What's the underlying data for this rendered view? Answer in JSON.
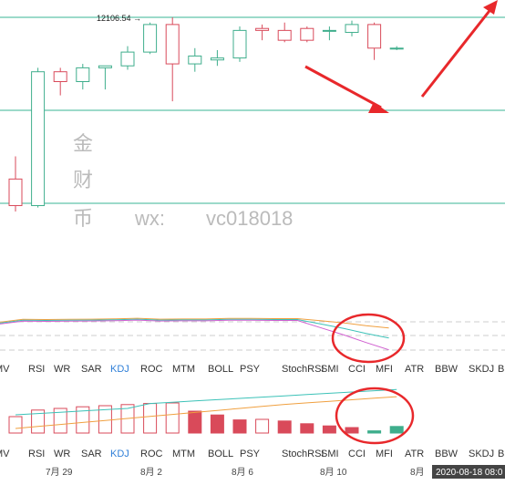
{
  "chart_data": {
    "type": "candlestick",
    "price_annotation": "12106.54 →",
    "candles": [
      {
        "o": 11285,
        "h": 11400,
        "l": 11120,
        "c": 11150
      },
      {
        "o": 11150,
        "h": 11850,
        "l": 11140,
        "c": 11830
      },
      {
        "o": 11830,
        "h": 11850,
        "l": 11710,
        "c": 11780
      },
      {
        "o": 11780,
        "h": 11870,
        "l": 11740,
        "c": 11850
      },
      {
        "o": 11850,
        "h": 11860,
        "l": 11740,
        "c": 11860
      },
      {
        "o": 11860,
        "h": 11960,
        "l": 11840,
        "c": 11930
      },
      {
        "o": 11930,
        "h": 12080,
        "l": 11920,
        "c": 12070
      },
      {
        "o": 12070,
        "h": 12106.54,
        "l": 11680,
        "c": 11870
      },
      {
        "o": 11870,
        "h": 11950,
        "l": 11830,
        "c": 11910
      },
      {
        "o": 11890,
        "h": 11940,
        "l": 11860,
        "c": 11900
      },
      {
        "o": 11900,
        "h": 12060,
        "l": 11880,
        "c": 12040
      },
      {
        "o": 12050,
        "h": 12070,
        "l": 11990,
        "c": 12040
      },
      {
        "o": 12040,
        "h": 12080,
        "l": 11980,
        "c": 11990
      },
      {
        "o": 12050,
        "h": 12060,
        "l": 11980,
        "c": 11990
      },
      {
        "o": 12040,
        "h": 12060,
        "l": 11990,
        "c": 12040
      },
      {
        "o": 12030,
        "h": 12090,
        "l": 12010,
        "c": 12070
      },
      {
        "o": 12070,
        "h": 12080,
        "l": 11890,
        "c": 11950
      },
      {
        "o": 11950,
        "h": 11960,
        "l": 11940,
        "c": 11950
      }
    ],
    "volume": [
      {
        "v": 30,
        "up": false
      },
      {
        "v": 42,
        "up": false
      },
      {
        "v": 45,
        "up": false
      },
      {
        "v": 48,
        "up": false
      },
      {
        "v": 50,
        "up": false
      },
      {
        "v": 52,
        "up": false
      },
      {
        "v": 54,
        "up": false
      },
      {
        "v": 55,
        "up": false
      },
      {
        "v": 40,
        "up": true
      },
      {
        "v": 33,
        "up": true
      },
      {
        "v": 24,
        "up": true
      },
      {
        "v": 25,
        "up": false
      },
      {
        "v": 22,
        "up": true
      },
      {
        "v": 17,
        "up": true
      },
      {
        "v": 13,
        "up": true
      },
      {
        "v": 10,
        "up": true
      },
      {
        "v": 4,
        "up": false
      },
      {
        "v": 12,
        "up": false
      }
    ],
    "x_labels": [
      "7月 29",
      "8月 2",
      "8月 6",
      "8月 10",
      "8月"
    ],
    "cursor_label": "2020-08-18 08:0",
    "indicator_tabs_top": [
      "MV",
      "RSI",
      "WR",
      "SAR",
      "KDJ",
      "ROC",
      "MTM",
      "BOLL",
      "PSY",
      "StochRSI",
      "SMI",
      "CCI",
      "MFI",
      "ATR",
      "BBW",
      "SKDJ",
      "BIA"
    ],
    "indicator_tabs_bottom": [
      "MV",
      "RSI",
      "WR",
      "SAR",
      "KDJ",
      "ROC",
      "MTM",
      "BOLL",
      "PSY",
      "StochRSI",
      "SMI",
      "CCI",
      "MFI",
      "ATR",
      "BBW",
      "SKDJ",
      "BIA"
    ],
    "active_top": "KDJ",
    "active_bottom": "KDJ"
  },
  "watermark": {
    "vertical": [
      "金",
      "财",
      "币"
    ],
    "wx_label": "wx:",
    "wx_id": "vc018018"
  },
  "colors": {
    "up": "#3fae8c",
    "down": "#d94a5a",
    "hline": "#39b596",
    "annot_red": "#e8282b",
    "osc1": "#f0a040",
    "osc2": "#3cc2b8",
    "osc3": "#d060d0",
    "active_tab": "#2f7fd8"
  }
}
